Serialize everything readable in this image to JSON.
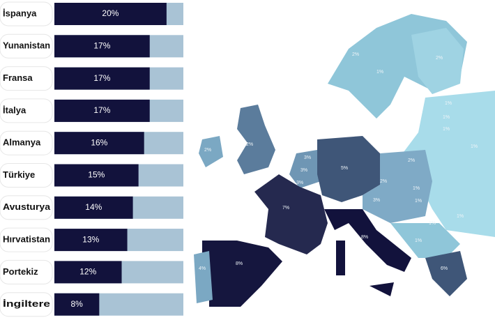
{
  "chart_data": {
    "type": "bar",
    "orientation": "horizontal",
    "categories": [
      "İspanya",
      "Yunanistan",
      "Fransa",
      "İtalya",
      "Almanya",
      "Türkiye",
      "Avusturya",
      "Hırvatistan",
      "Portekiz",
      "İngiltere"
    ],
    "values": [
      20,
      17,
      17,
      17,
      16,
      15,
      14,
      13,
      12,
      8
    ],
    "value_labels": [
      "20%",
      "17%",
      "17%",
      "17%",
      "16%",
      "15%",
      "14%",
      "13%",
      "12%",
      "8%"
    ],
    "color": "#12123c",
    "track_color": "#a9c3d5",
    "xlim": [
      0,
      23
    ]
  },
  "map": {
    "labels": [
      "2%",
      "1%",
      "2%",
      "1%",
      "1%",
      "1%",
      "1%",
      "2%",
      "2%",
      "3%",
      "3%",
      "3%",
      "5%",
      "2%",
      "2%",
      "1%",
      "3%",
      "1%",
      "7%",
      "8%",
      "8%",
      "4%",
      "6%",
      "1%",
      "1%",
      "1%"
    ]
  }
}
